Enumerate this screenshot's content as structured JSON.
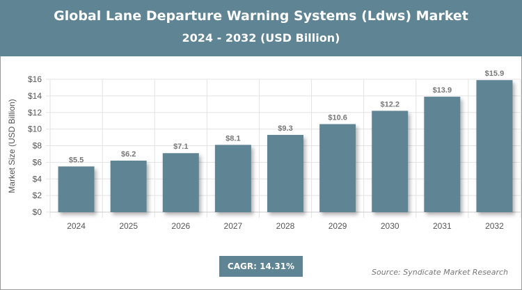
{
  "chart_data": {
    "type": "bar",
    "title": "Global Lane Departure Warning Systems (Ldws) Market",
    "subtitle": "2024 - 2032 (USD Billion)",
    "xlabel": "",
    "ylabel": "Market Size (USD Billion)",
    "categories": [
      "2024",
      "2025",
      "2026",
      "2027",
      "2028",
      "2029",
      "2030",
      "2031",
      "2032"
    ],
    "values": [
      5.5,
      6.2,
      7.1,
      8.1,
      9.3,
      10.6,
      12.2,
      13.9,
      15.9
    ],
    "data_labels": [
      "$5.5",
      "$6.2",
      "$7.1",
      "$8.1",
      "$9.3",
      "$10.6",
      "$12.2",
      "$13.9",
      "$15.9"
    ],
    "ylim": [
      0,
      16
    ],
    "yticks": [
      "$0",
      "$2",
      "$4",
      "$6",
      "$8",
      "$10",
      "$12",
      "$14",
      "$16"
    ],
    "grid": true,
    "bar_color": "#5f8494"
  },
  "cagr": "CAGR: 14.31%",
  "source": "Source: Syndicate Market Research"
}
